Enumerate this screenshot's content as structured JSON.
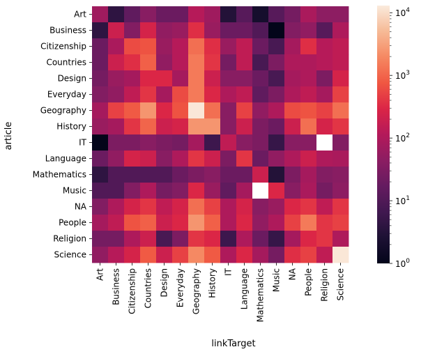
{
  "chart_data": {
    "type": "heatmap",
    "title": "",
    "xlabel": "linkTarget",
    "ylabel": "article",
    "rows": [
      "Art",
      "Business",
      "Citizenship",
      "Countries",
      "Design",
      "Everyday",
      "Geography",
      "History",
      "IT",
      "Language",
      "Mathematics",
      "Music",
      "NA",
      "People",
      "Religion",
      "Science"
    ],
    "columns": [
      "Art",
      "Business",
      "Citizenship",
      "Countries",
      "Design",
      "Everyday",
      "Geography",
      "History",
      "IT",
      "Language",
      "Mathematics",
      "Music",
      "NA",
      "People",
      "Religion",
      "Science"
    ],
    "values": [
      [
        70,
        4,
        15,
        40,
        20,
        20,
        120,
        70,
        3,
        12,
        2,
        12,
        25,
        90,
        45,
        45
      ],
      [
        4,
        200,
        35,
        250,
        50,
        60,
        350,
        60,
        20,
        20,
        10,
        1,
        35,
        50,
        12,
        100
      ],
      [
        20,
        90,
        600,
        700,
        60,
        120,
        1200,
        350,
        60,
        150,
        20,
        8,
        80,
        350,
        120,
        150
      ],
      [
        20,
        200,
        350,
        900,
        50,
        120,
        1500,
        400,
        25,
        150,
        8,
        30,
        100,
        100,
        120,
        150
      ],
      [
        25,
        60,
        80,
        300,
        300,
        80,
        1500,
        200,
        40,
        40,
        20,
        8,
        80,
        100,
        30,
        250
      ],
      [
        35,
        50,
        150,
        400,
        80,
        600,
        1500,
        300,
        100,
        150,
        15,
        30,
        100,
        150,
        80,
        500
      ],
      [
        80,
        500,
        800,
        2500,
        300,
        700,
        12000,
        1200,
        40,
        500,
        50,
        100,
        600,
        700,
        500,
        1200
      ],
      [
        60,
        80,
        400,
        1000,
        200,
        250,
        2500,
        2500,
        40,
        200,
        30,
        20,
        200,
        1200,
        250,
        400
      ],
      [
        1,
        30,
        30,
        40,
        30,
        25,
        80,
        6,
        150,
        40,
        30,
        5,
        40,
        40,
        0.5,
        35
      ],
      [
        20,
        50,
        250,
        200,
        40,
        100,
        400,
        200,
        30,
        400,
        20,
        50,
        100,
        200,
        100,
        90
      ],
      [
        4,
        10,
        10,
        10,
        10,
        20,
        30,
        40,
        20,
        20,
        200,
        3,
        30,
        80,
        35,
        40
      ],
      [
        10,
        10,
        35,
        100,
        25,
        35,
        300,
        60,
        15,
        80,
        0.8,
        300,
        40,
        90,
        25,
        45
      ],
      [
        35,
        100,
        250,
        400,
        150,
        250,
        1200,
        500,
        100,
        250,
        40,
        60,
        300,
        400,
        150,
        400
      ],
      [
        80,
        150,
        700,
        900,
        200,
        300,
        2500,
        900,
        100,
        300,
        50,
        100,
        500,
        1500,
        400,
        500
      ],
      [
        25,
        25,
        100,
        200,
        8,
        30,
        400,
        300,
        6,
        100,
        20,
        5,
        80,
        300,
        400,
        100
      ],
      [
        50,
        120,
        250,
        800,
        200,
        500,
        2000,
        800,
        100,
        300,
        80,
        25,
        350,
        500,
        150,
        12000
      ]
    ],
    "color_scale": "log",
    "colorbar_range": [
      1,
      13000
    ],
    "colorbar_ticks": [
      {
        "label": "10",
        "sup": "0",
        "value": 1
      },
      {
        "label": "10",
        "sup": "1",
        "value": 10
      },
      {
        "label": "10",
        "sup": "2",
        "value": 100
      },
      {
        "label": "10",
        "sup": "3",
        "value": 1000
      },
      {
        "label": "10",
        "sup": "4",
        "value": 10000
      }
    ],
    "missing_color": "#ffffff",
    "colormap": "rocket"
  }
}
